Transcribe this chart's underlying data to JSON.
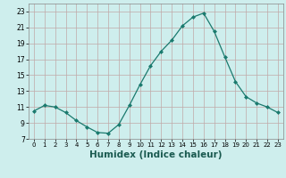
{
  "x": [
    0,
    1,
    2,
    3,
    4,
    5,
    6,
    7,
    8,
    9,
    10,
    11,
    12,
    13,
    14,
    15,
    16,
    17,
    18,
    19,
    20,
    21,
    22,
    23
  ],
  "y": [
    10.5,
    11.2,
    11.0,
    10.3,
    9.3,
    8.5,
    7.8,
    7.7,
    8.8,
    11.2,
    13.8,
    16.2,
    18.0,
    19.4,
    21.2,
    22.3,
    22.8,
    20.5,
    17.3,
    14.2,
    12.3,
    11.5,
    11.0,
    10.3
  ],
  "xlabel": "Humidex (Indice chaleur)",
  "ylim": [
    7,
    24
  ],
  "xlim": [
    -0.5,
    23.5
  ],
  "yticks": [
    7,
    9,
    11,
    13,
    15,
    17,
    19,
    21,
    23
  ],
  "xticks": [
    0,
    1,
    2,
    3,
    4,
    5,
    6,
    7,
    8,
    9,
    10,
    11,
    12,
    13,
    14,
    15,
    16,
    17,
    18,
    19,
    20,
    21,
    22,
    23
  ],
  "line_color": "#1a7a6e",
  "marker": "D",
  "marker_size": 2.0,
  "bg_color": "#ceeeed",
  "grid_color": "#c0a8a8",
  "xlabel_fontsize": 7.5,
  "tick_fontsize": 5.0,
  "ytick_fontsize": 5.5
}
